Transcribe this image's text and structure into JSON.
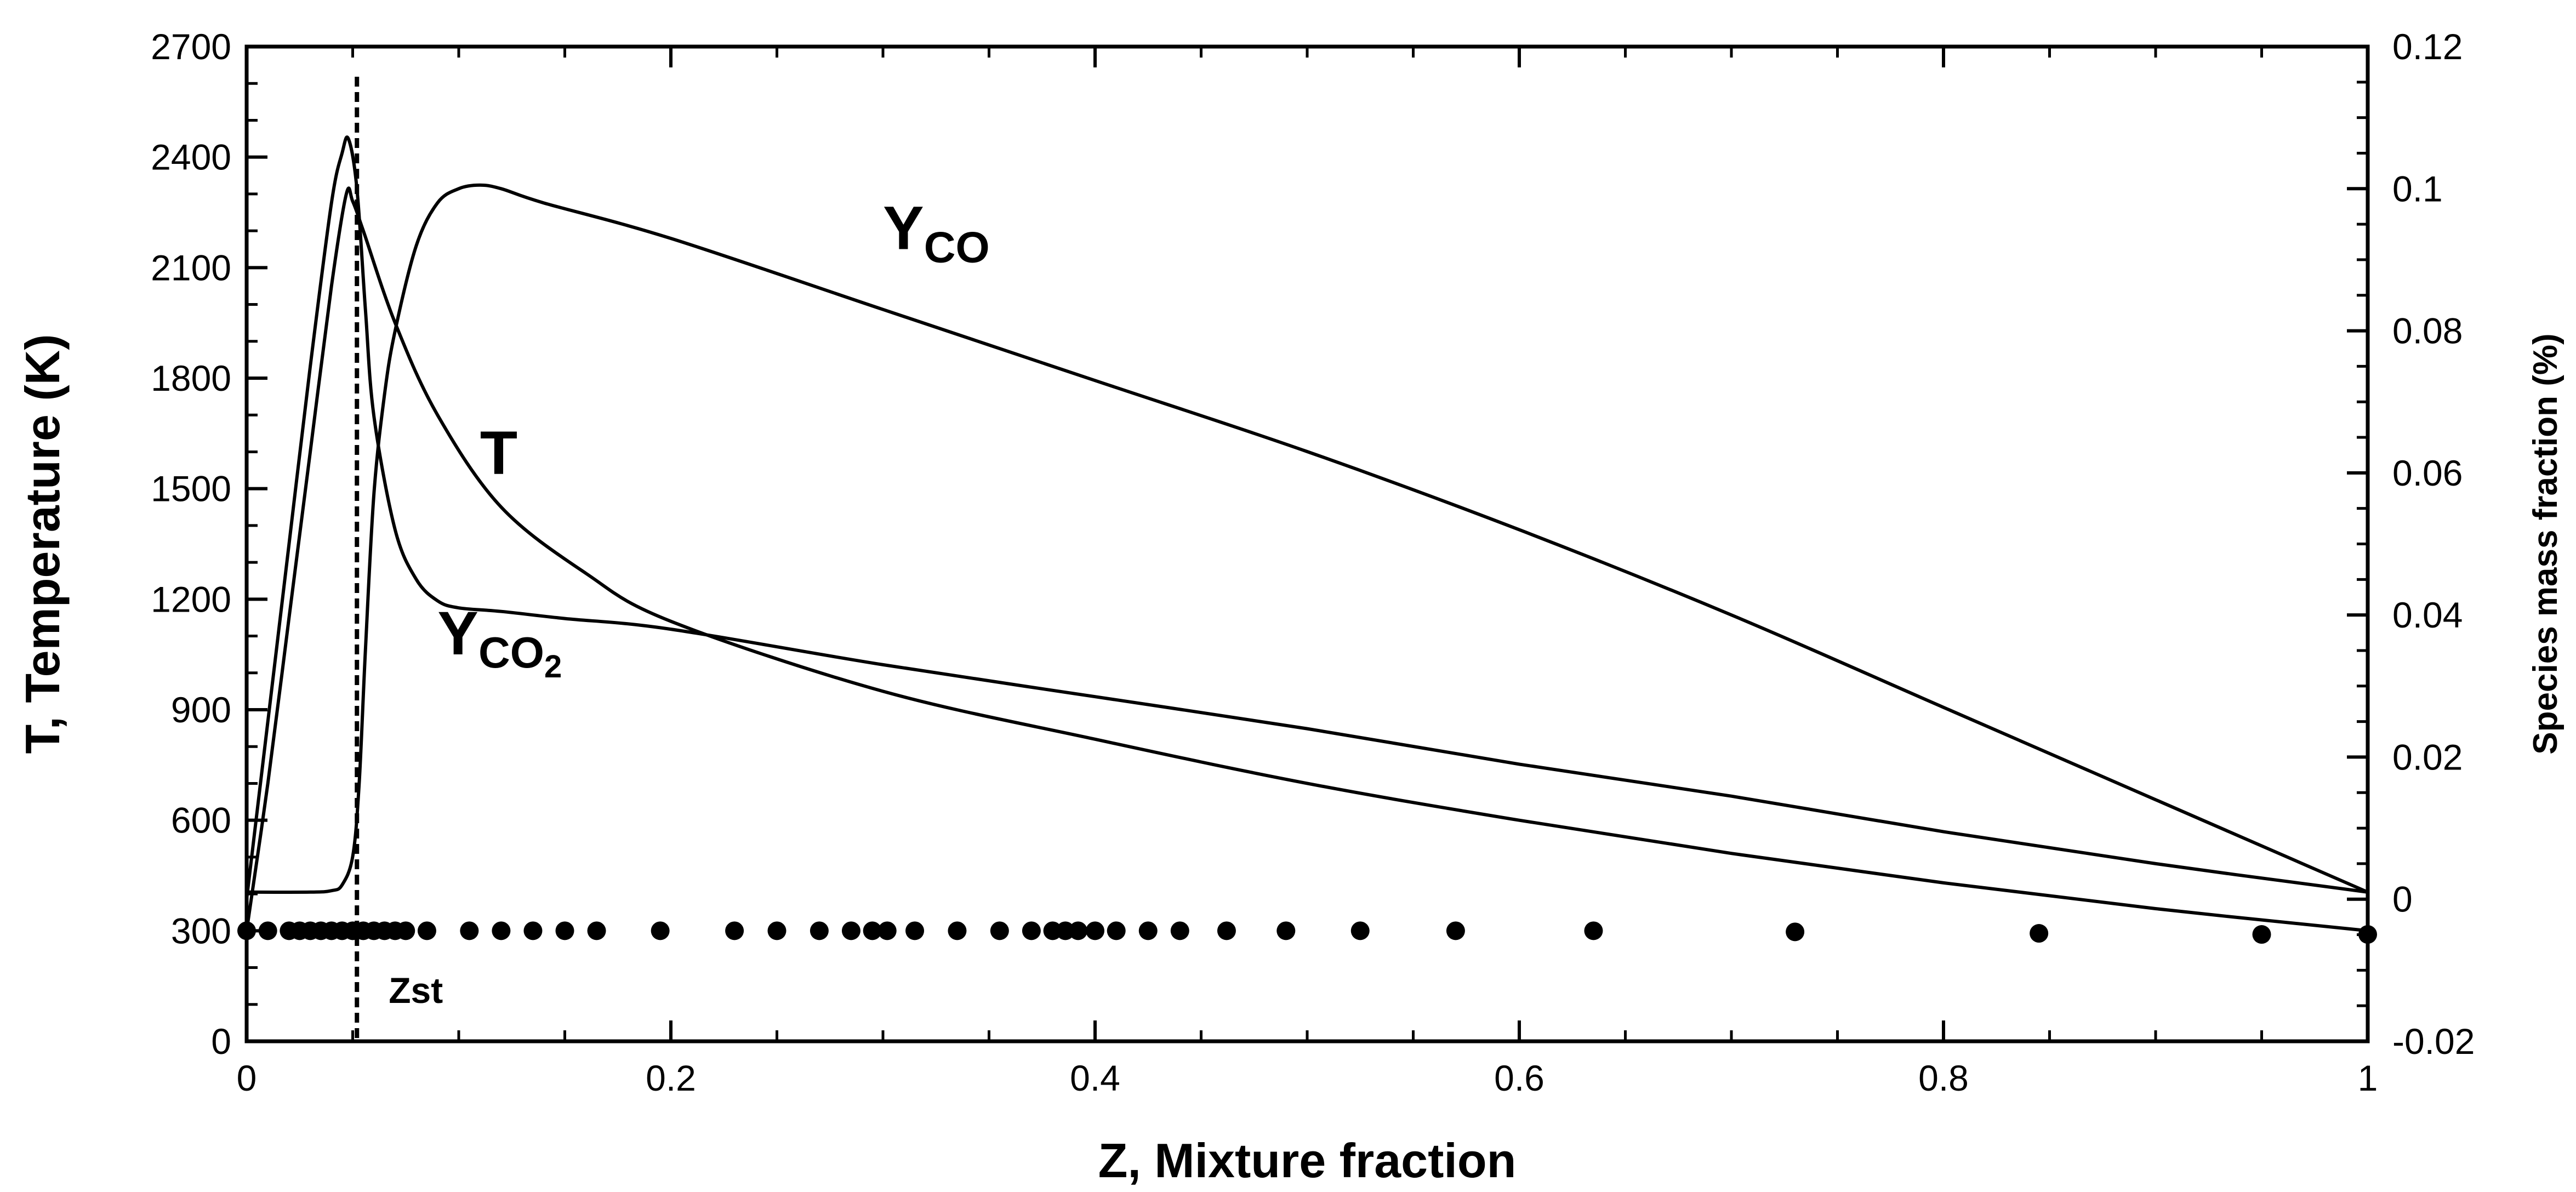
{
  "chart_data": {
    "type": "line",
    "xlabel": "Z, Mixture fraction",
    "ylabel_left": "T, Temperature  (K)",
    "ylabel_right": "Species mass fraction (%)",
    "xlim": [
      0,
      1
    ],
    "ylim_left": [
      0,
      2700
    ],
    "ylim_right": [
      -0.02,
      0.12
    ],
    "x_ticks": [
      "0",
      "0.2",
      "0.4",
      "0.6",
      "0.8",
      "1"
    ],
    "y_ticks_left": [
      "0",
      "300",
      "600",
      "900",
      "1200",
      "1500",
      "1800",
      "2100",
      "2400",
      "2700"
    ],
    "y_ticks_right": [
      "-0.02",
      "0",
      "0.02",
      "0.04",
      "0.06",
      "0.08",
      "0.1",
      "0.12"
    ],
    "grid": false,
    "series": [
      {
        "name": "T",
        "axis": "left",
        "x": [
          0,
          0.01,
          0.02,
          0.03,
          0.04,
          0.047,
          0.05,
          0.055,
          0.07,
          0.09,
          0.12,
          0.16,
          0.2,
          0.3,
          0.4,
          0.5,
          0.6,
          0.7,
          0.8,
          0.9,
          1.0
        ],
        "y": [
          300,
          700,
          1150,
          1600,
          2050,
          2300,
          2280,
          2200,
          1950,
          1700,
          1450,
          1270,
          1140,
          950,
          820,
          700,
          600,
          510,
          430,
          360,
          300
        ]
      },
      {
        "name": "Y_CO2",
        "axis": "right",
        "x": [
          0,
          0.01,
          0.02,
          0.03,
          0.04,
          0.045,
          0.048,
          0.052,
          0.056,
          0.06,
          0.07,
          0.08,
          0.09,
          0.1,
          0.12,
          0.15,
          0.2,
          0.3,
          0.4,
          0.5,
          0.6,
          0.7,
          0.8,
          0.9,
          1.0
        ],
        "y": [
          0,
          0.025,
          0.05,
          0.075,
          0.098,
          0.105,
          0.107,
          0.1,
          0.083,
          0.068,
          0.052,
          0.045,
          0.042,
          0.041,
          0.0405,
          0.0395,
          0.038,
          0.033,
          0.0285,
          0.024,
          0.019,
          0.0145,
          0.0095,
          0.005,
          0.001
        ]
      },
      {
        "name": "Y_CO",
        "axis": "right",
        "x": [
          0,
          0.03,
          0.04,
          0.045,
          0.05,
          0.053,
          0.056,
          0.06,
          0.065,
          0.07,
          0.08,
          0.09,
          0.1,
          0.11,
          0.12,
          0.14,
          0.2,
          0.3,
          0.4,
          0.5,
          0.6,
          0.7,
          0.8,
          0.9,
          1.0
        ],
        "y": [
          0.001,
          0.001,
          0.0012,
          0.002,
          0.006,
          0.016,
          0.035,
          0.057,
          0.071,
          0.08,
          0.092,
          0.098,
          0.1,
          0.1005,
          0.1,
          0.098,
          0.093,
          0.083,
          0.073,
          0.063,
          0.052,
          0.04,
          0.027,
          0.014,
          0.001
        ]
      }
    ],
    "markers": {
      "x": [
        0,
        0.01,
        0.02,
        0.025,
        0.03,
        0.035,
        0.04,
        0.045,
        0.05,
        0.055,
        0.06,
        0.065,
        0.07,
        0.075,
        0.085,
        0.105,
        0.12,
        0.135,
        0.15,
        0.165,
        0.195,
        0.23,
        0.25,
        0.27,
        0.285,
        0.295,
        0.302,
        0.315,
        0.335,
        0.355,
        0.37,
        0.38,
        0.386,
        0.392,
        0.4,
        0.41,
        0.425,
        0.44,
        0.462,
        0.49,
        0.525,
        0.57,
        0.635,
        0.73,
        0.845,
        0.95,
        1.0
      ],
      "y": [
        300,
        300,
        300,
        300,
        300,
        300,
        300,
        300,
        300,
        300,
        300,
        300,
        300,
        300,
        300,
        300,
        300,
        300,
        300,
        300,
        300,
        300,
        300,
        300,
        300,
        300,
        300,
        300,
        300,
        300,
        300,
        300,
        300,
        300,
        300,
        300,
        300,
        300,
        300,
        300,
        300,
        300,
        300,
        297,
        293,
        290,
        290
      ]
    },
    "stoichiometric_line": {
      "x": 0.052,
      "label": "Zst"
    },
    "curve_labels": [
      {
        "series": "Y_CO",
        "base": "Y",
        "sub": "CO",
        "x": 0.3,
        "y": 2150
      },
      {
        "series": "T",
        "base": "T",
        "sub": "",
        "x": 0.11,
        "y": 1540
      },
      {
        "series": "Y_CO2",
        "base": "Y",
        "sub": "CO",
        "sub2": "2",
        "x": 0.09,
        "y": 1050
      }
    ]
  }
}
